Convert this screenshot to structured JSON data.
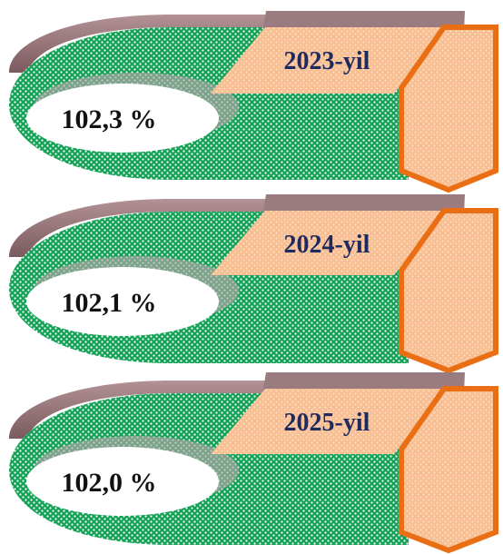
{
  "items": [
    {
      "year_label": "2023-yil",
      "value_label": "102,3 %"
    },
    {
      "year_label": "2024-yil",
      "value_label": "102,1 %"
    },
    {
      "year_label": "2025-yil",
      "value_label": "102,0 %"
    }
  ],
  "colors": {
    "green": "#12a155",
    "dots": "#ffffff",
    "peach": "#f8bf92",
    "orange": "#ea6f14",
    "shadow": "#8c6c70",
    "ellipse": "#ffffff"
  }
}
